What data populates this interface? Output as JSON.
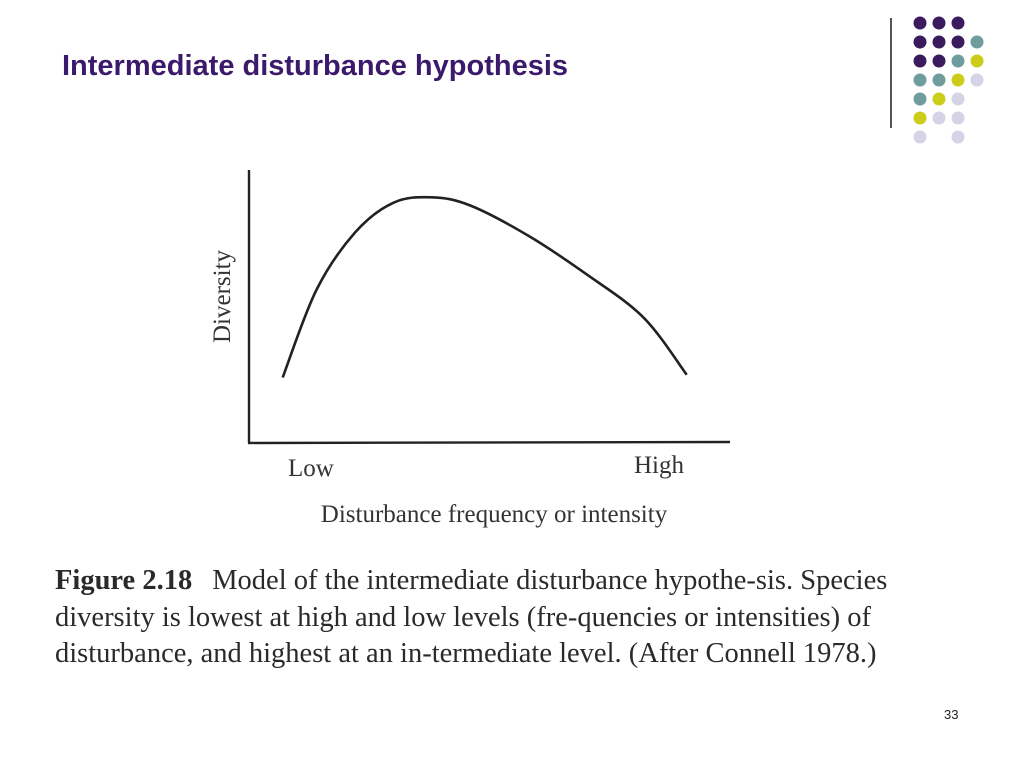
{
  "slide": {
    "title": "Intermediate disturbance hypothesis",
    "page_number": "33"
  },
  "theme_colors": {
    "title": "#3b1a6b",
    "dot_purple": "#3b1a5e",
    "dot_teal": "#6f9c9c",
    "dot_yellow": "#cccc1a",
    "dot_lavender": "#d4d4e6"
  },
  "decoration": {
    "dot_rows": [
      [
        "purple",
        "purple",
        "purple",
        null
      ],
      [
        "purple",
        "purple",
        "purple",
        "teal"
      ],
      [
        "purple",
        "purple",
        "teal",
        "yellow"
      ],
      [
        "teal",
        "teal",
        "yellow",
        "lavender"
      ],
      [
        "teal",
        "yellow",
        "lavender",
        null
      ],
      [
        "yellow",
        "lavender",
        "lavender",
        null
      ],
      [
        "lavender",
        null,
        "lavender",
        null
      ]
    ]
  },
  "figure": {
    "label": "Figure 2.18",
    "caption": "Model of the intermediate disturbance hypothe-sis. Species diversity is lowest at high and low levels (fre-quencies or intensities) of disturbance, and highest at an in-termediate level. (After Connell 1978.)"
  },
  "chart_data": {
    "type": "line",
    "title": "",
    "xlabel": "Disturbance frequency or intensity",
    "ylabel": "Diversity",
    "x_tick_labels": [
      "Low",
      "High"
    ],
    "xlim": [
      0,
      1
    ],
    "ylim": [
      0,
      1
    ],
    "grid": false,
    "series": [
      {
        "values": [
          {
            "x": 0.07,
            "y": 0.24
          },
          {
            "x": 0.14,
            "y": 0.56
          },
          {
            "x": 0.22,
            "y": 0.77
          },
          {
            "x": 0.3,
            "y": 0.88
          },
          {
            "x": 0.38,
            "y": 0.9
          },
          {
            "x": 0.46,
            "y": 0.87
          },
          {
            "x": 0.58,
            "y": 0.76
          },
          {
            "x": 0.7,
            "y": 0.62
          },
          {
            "x": 0.82,
            "y": 0.46
          },
          {
            "x": 0.91,
            "y": 0.25
          }
        ]
      }
    ]
  }
}
